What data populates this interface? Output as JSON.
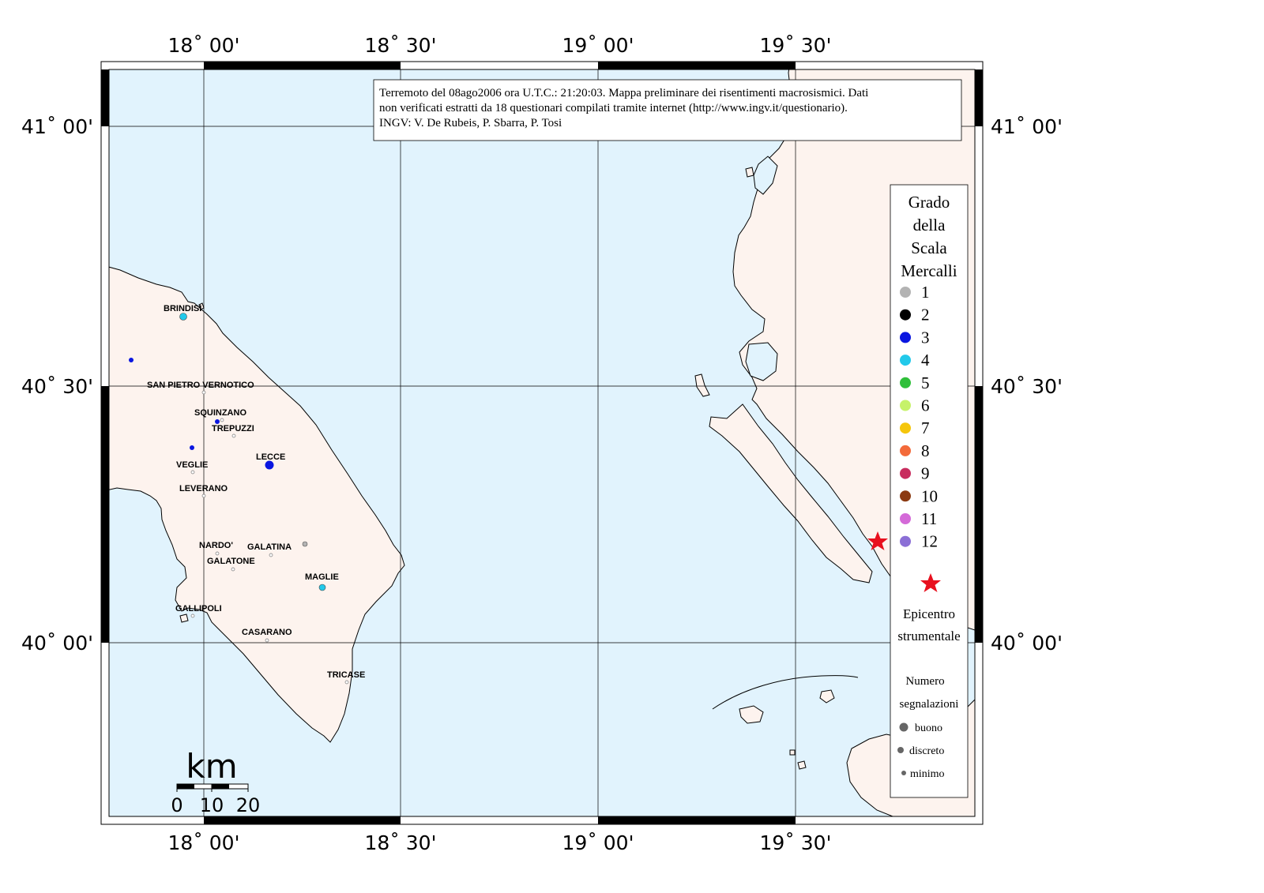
{
  "ticks": {
    "lon": [
      "18˚ 00'",
      "18˚ 30'",
      "19˚ 00'",
      "19˚ 30'"
    ],
    "lat": [
      "41˚ 00'",
      "40˚ 30'",
      "40˚ 00'"
    ]
  },
  "info": {
    "line1": "Terremoto del 08ago2006 ora U.T.C.: 21:20:03.  Mappa preliminare dei risentimenti macrosismici.  Dati",
    "line2": "non verificati estratti da 18 questionari compilati tramite internet (http://www.ingv.it/questionario).",
    "line3": "INGV: V.  De Rubeis, P.  Sbarra, P.  Tosi"
  },
  "legend": {
    "title": [
      "Grado",
      "della",
      "Scala",
      "Mercalli"
    ],
    "grades": [
      {
        "label": "1",
        "color": "#b3b3b3"
      },
      {
        "label": "2",
        "color": "#000000"
      },
      {
        "label": "3",
        "color": "#0a16e0"
      },
      {
        "label": "4",
        "color": "#22c9ea"
      },
      {
        "label": "5",
        "color": "#2fbf3a"
      },
      {
        "label": "6",
        "color": "#c6f26a"
      },
      {
        "label": "7",
        "color": "#f5c60c"
      },
      {
        "label": "8",
        "color": "#f36a3a"
      },
      {
        "label": "9",
        "color": "#c82c5e"
      },
      {
        "label": "10",
        "color": "#8b3a12"
      },
      {
        "label": "11",
        "color": "#d46ad8"
      },
      {
        "label": "12",
        "color": "#8b6fd6"
      }
    ],
    "epicenter": [
      "Epicentro",
      "strumentale"
    ],
    "count_title": [
      "Numero",
      "segnalazioni"
    ],
    "counts": [
      "buono",
      "discreto",
      "minimo"
    ]
  },
  "cities": [
    {
      "name": "BRINDISI",
      "grade": 4,
      "size": "buono"
    },
    {
      "name": "SAN PIETRO VERNOTICO",
      "grade": null
    },
    {
      "name": "SQUINZANO",
      "grade": 3,
      "size": "minimo"
    },
    {
      "name": "TREPUZZI",
      "grade": null
    },
    {
      "name": "LECCE",
      "grade": 3,
      "size": "buono"
    },
    {
      "name": "VEGLIE",
      "grade": null
    },
    {
      "name": "LEVERANO",
      "grade": null
    },
    {
      "name": "NARDO'",
      "grade": null
    },
    {
      "name": "GALATINA",
      "grade": 1,
      "size": "minimo"
    },
    {
      "name": "GALATONE",
      "grade": null
    },
    {
      "name": "MAGLIE",
      "grade": 4,
      "size": "discreto"
    },
    {
      "name": "GALLIPOLI",
      "grade": null
    },
    {
      "name": "CASARANO",
      "grade": null
    },
    {
      "name": "TRICASE",
      "grade": null
    }
  ],
  "scale": {
    "unit": "km",
    "labels": [
      "0",
      "10",
      "20"
    ]
  },
  "colors": {
    "sea": "#e1f3fd",
    "land": "#fdf3ee",
    "epicenter": "#e8101e"
  }
}
